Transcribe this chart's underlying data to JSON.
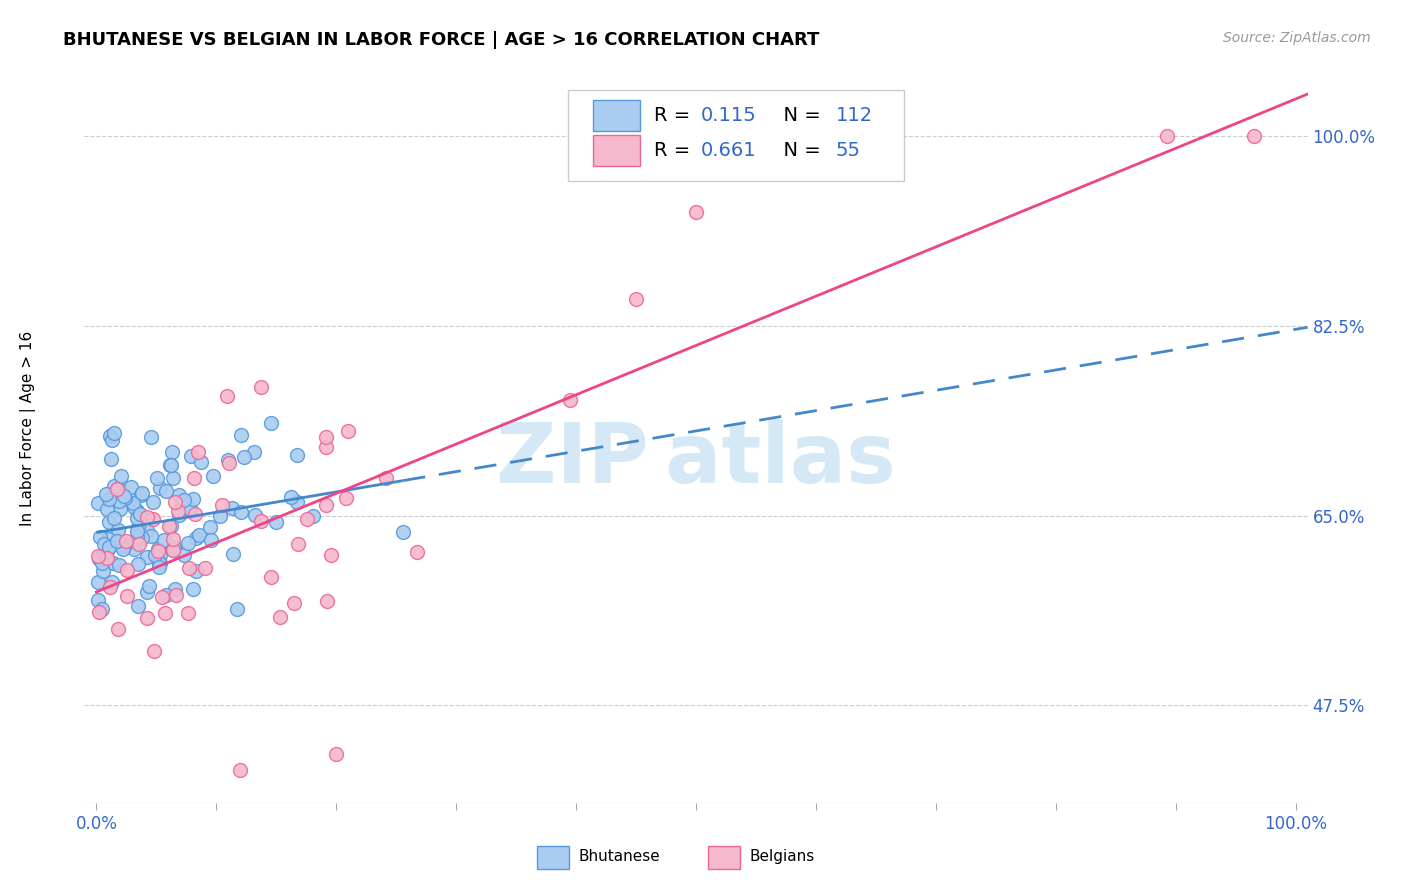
{
  "title": "BHUTANESE VS BELGIAN IN LABOR FORCE | AGE > 16 CORRELATION CHART",
  "source": "Source: ZipAtlas.com",
  "ylabel": "In Labor Force | Age > 16",
  "ytick_labels": [
    "100.0%",
    "82.5%",
    "65.0%",
    "47.5%"
  ],
  "ytick_values": [
    1.0,
    0.825,
    0.65,
    0.475
  ],
  "xlim": [
    -0.01,
    1.01
  ],
  "ylim": [
    0.385,
    1.06
  ],
  "bhutanese_color": "#aaccf0",
  "belgian_color": "#f5b8cc",
  "bhutanese_edge_color": "#5599dd",
  "belgian_edge_color": "#ee6699",
  "bhutanese_line_color": "#4488cc",
  "belgian_line_color": "#ee4488",
  "watermark_color": "#d5e8f5",
  "legend_R_bhutanese": "0.115",
  "legend_N_bhutanese": "112",
  "legend_R_belgian": "0.661",
  "legend_N_belgian": "55",
  "text_color": "#3366cc",
  "grid_color": "#cccccc",
  "background_color": "#ffffff",
  "title_fontsize": 13,
  "source_fontsize": 10,
  "tick_fontsize": 12,
  "legend_fontsize": 14,
  "ylabel_fontsize": 11,
  "watermark_fontsize": 60
}
